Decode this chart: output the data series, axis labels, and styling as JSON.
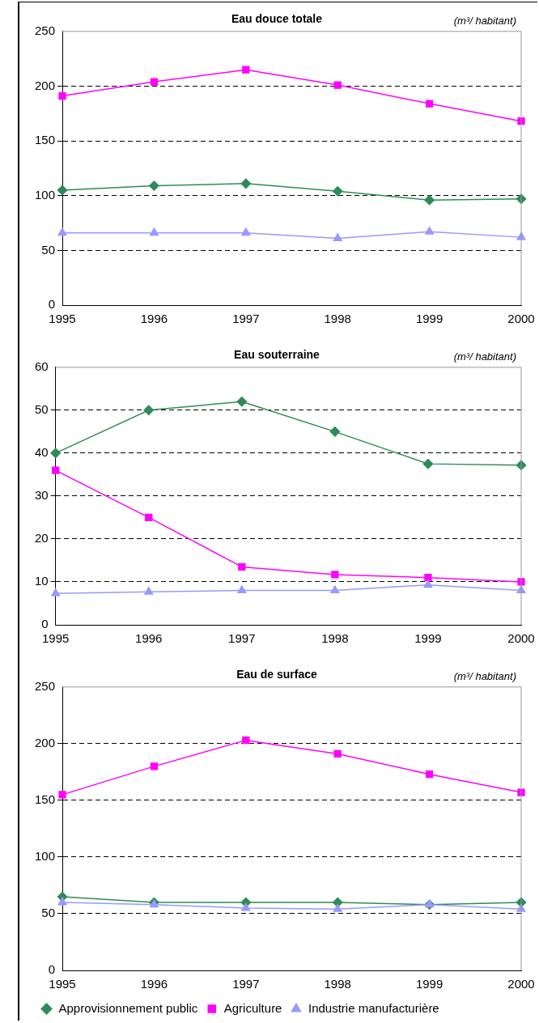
{
  "chart_data": [
    {
      "type": "line",
      "title": "Eau douce totale",
      "annotations": [
        "(m³/ habitant)"
      ],
      "categories": [
        "1995",
        "1996",
        "1997",
        "1998",
        "1999",
        "2000"
      ],
      "ylim": [
        0,
        250
      ],
      "yticks": [
        0,
        50,
        100,
        150,
        200,
        250
      ],
      "grid": "y",
      "legend": false,
      "series": [
        {
          "color": "#2e8b57",
          "marker": "diamond",
          "values": [
            105,
            109,
            111,
            104,
            96,
            97
          ]
        },
        {
          "color": "#ff00ff",
          "marker": "square",
          "values": [
            191,
            204,
            215,
            201,
            184,
            168
          ]
        },
        {
          "color": "#9999ff",
          "marker": "triangle",
          "values": [
            66,
            66,
            66,
            61,
            67,
            62
          ]
        }
      ]
    },
    {
      "type": "line",
      "title": "Eau souterraine",
      "annotations": [
        "(m³/ habitant)"
      ],
      "categories": [
        "1995",
        "1996",
        "1997",
        "1998",
        "1999",
        "2000"
      ],
      "ylim": [
        0,
        60
      ],
      "yticks": [
        0,
        10,
        20,
        30,
        40,
        50,
        60
      ],
      "grid": "y",
      "legend": false,
      "series": [
        {
          "color": "#2e8b57",
          "marker": "diamond",
          "values": [
            40,
            50,
            52,
            45,
            37.5,
            37.2
          ]
        },
        {
          "color": "#ff00ff",
          "marker": "square",
          "values": [
            36,
            25,
            13.5,
            11.7,
            11,
            10
          ]
        },
        {
          "color": "#9999ff",
          "marker": "triangle",
          "values": [
            7.3,
            7.7,
            8,
            8,
            9.3,
            8
          ]
        }
      ]
    },
    {
      "type": "line",
      "title": "Eau de surface",
      "annotations": [
        "(m³/ habitant)"
      ],
      "categories": [
        "1995",
        "1996",
        "1997",
        "1998",
        "1999",
        "2000"
      ],
      "ylim": [
        0,
        250
      ],
      "yticks": [
        0,
        50,
        100,
        150,
        200,
        250
      ],
      "grid": "y",
      "legend": "bottom",
      "series": [
        {
          "name": "Approvisionnement public",
          "color": "#2e8b57",
          "marker": "diamond",
          "values": [
            65,
            60,
            60,
            60,
            58,
            60
          ]
        },
        {
          "name": "Agriculture",
          "color": "#ff00ff",
          "marker": "square",
          "values": [
            155,
            180,
            203,
            191,
            173,
            157
          ]
        },
        {
          "name": "Industrie manufacturière",
          "color": "#9999ff",
          "marker": "triangle",
          "values": [
            60,
            58,
            55,
            54,
            58,
            54
          ]
        }
      ]
    }
  ]
}
